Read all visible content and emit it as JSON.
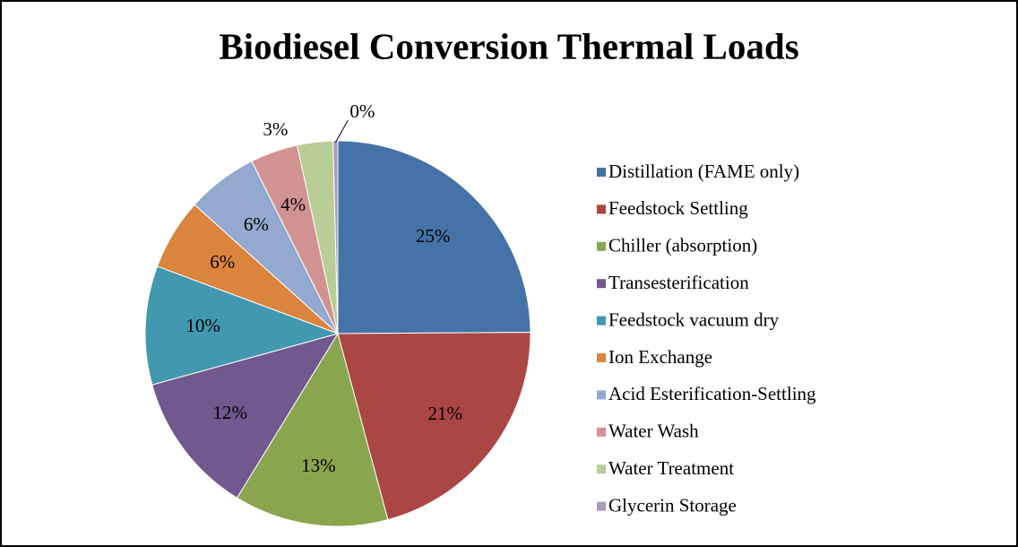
{
  "chart_data": {
    "type": "pie",
    "title": "Biodiesel Conversion Thermal Loads",
    "categories": [
      "Distillation (FAME only)",
      "Feedstock Settling",
      "Chiller (absorption)",
      "Transesterification",
      "Feedstock vacuum dry",
      "Ion Exchange",
      "Acid Esterification-Settling",
      "Water Wash",
      "Water Treatment",
      "Glycerin Storage"
    ],
    "values": [
      25,
      21,
      13,
      12,
      10,
      6,
      6,
      4,
      3,
      0.4
    ],
    "value_labels": [
      "25%",
      "21%",
      "13%",
      "12%",
      "10%",
      "6%",
      "6%",
      "4%",
      "3%",
      "0%"
    ],
    "colors": [
      "#4572A7",
      "#AA4643",
      "#89A54E",
      "#71588F",
      "#4198AF",
      "#DB843D",
      "#93A9CF",
      "#D19392",
      "#B9CD96",
      "#A99BBD"
    ],
    "legend": "right"
  }
}
